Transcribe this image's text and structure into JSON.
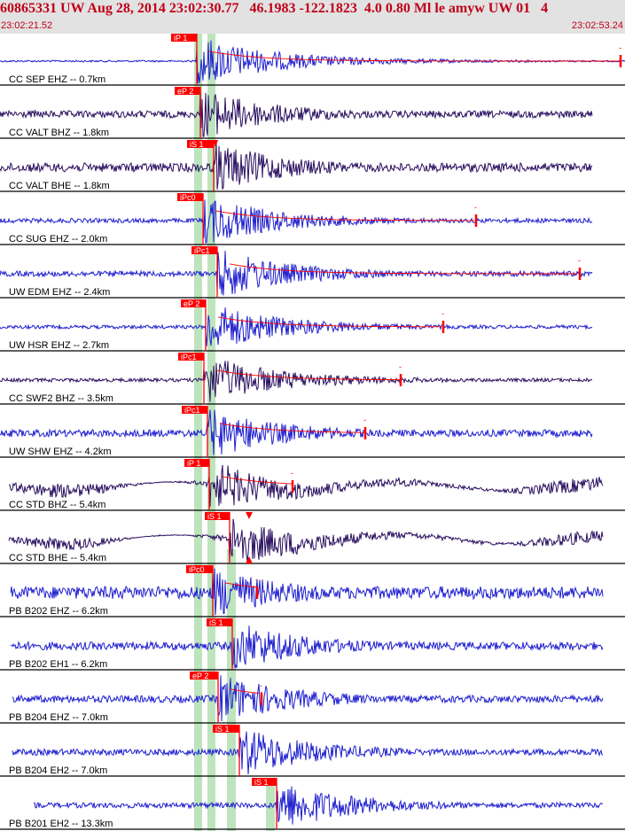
{
  "header": {
    "title": "60865331 UW Aug 28, 2014 23:02:30.77   46.1983 -122.1823  4.0 0.80 Ml le amyw UW 01   4",
    "start_time": "23:02:21.52",
    "end_time": "23:02:53.24"
  },
  "colors": {
    "header_text": "#c0001a",
    "header_bg": "#e2e2e2",
    "vertical_trace": "#1f1fd0",
    "horizontal_trace": "#2a1060",
    "pick": "#ff0000",
    "window_band": "#b9e3b9"
  },
  "chart_data": {
    "type": "line",
    "x_range_label": [
      "23:02:21.52",
      "23:02:53.24"
    ],
    "traces": [
      {
        "label": "CC SEP EHZ -- 0.7km",
        "pick": "iP 1",
        "component": "vertical"
      },
      {
        "label": "CC VALT BHZ -- 1.8km",
        "pick": "eP 2",
        "component": "horizontal"
      },
      {
        "label": "CC VALT BHE -- 1.8km",
        "pick": "iS 1",
        "component": "horizontal"
      },
      {
        "label": "CC SUG EHZ -- 2.0km",
        "pick": "iPc0",
        "component": "vertical"
      },
      {
        "label": "UW EDM EHZ -- 2.4km",
        "pick": "iPc1",
        "component": "vertical"
      },
      {
        "label": "UW HSR EHZ -- 2.7km",
        "pick": "eP 2",
        "component": "vertical"
      },
      {
        "label": "CC SWF2 BHZ -- 3.5km",
        "pick": "iPc1",
        "component": "horizontal"
      },
      {
        "label": "UW SHW EHZ -- 4.2km",
        "pick": "iPc1",
        "component": "vertical"
      },
      {
        "label": "CC STD BHZ -- 5.4km",
        "pick": "iP 1",
        "component": "horizontal"
      },
      {
        "label": "CC STD BHE -- 5.4km",
        "pick": "iS 1",
        "component": "horizontal"
      },
      {
        "label": "PB B202 EHZ -- 6.2km",
        "pick": "iPc0",
        "component": "vertical"
      },
      {
        "label": "PB B202 EH1 -- 6.2km",
        "pick": "iS 1",
        "component": "vertical"
      },
      {
        "label": "PB B204 EHZ -- 7.0km",
        "pick": "eP 2",
        "component": "vertical"
      },
      {
        "label": "PB B204 EH2 -- 7.0km",
        "pick": "iS 1",
        "component": "vertical"
      },
      {
        "label": "PB B201 EH2 -- 13.3km",
        "pick": "iS 1",
        "component": "vertical"
      }
    ]
  }
}
